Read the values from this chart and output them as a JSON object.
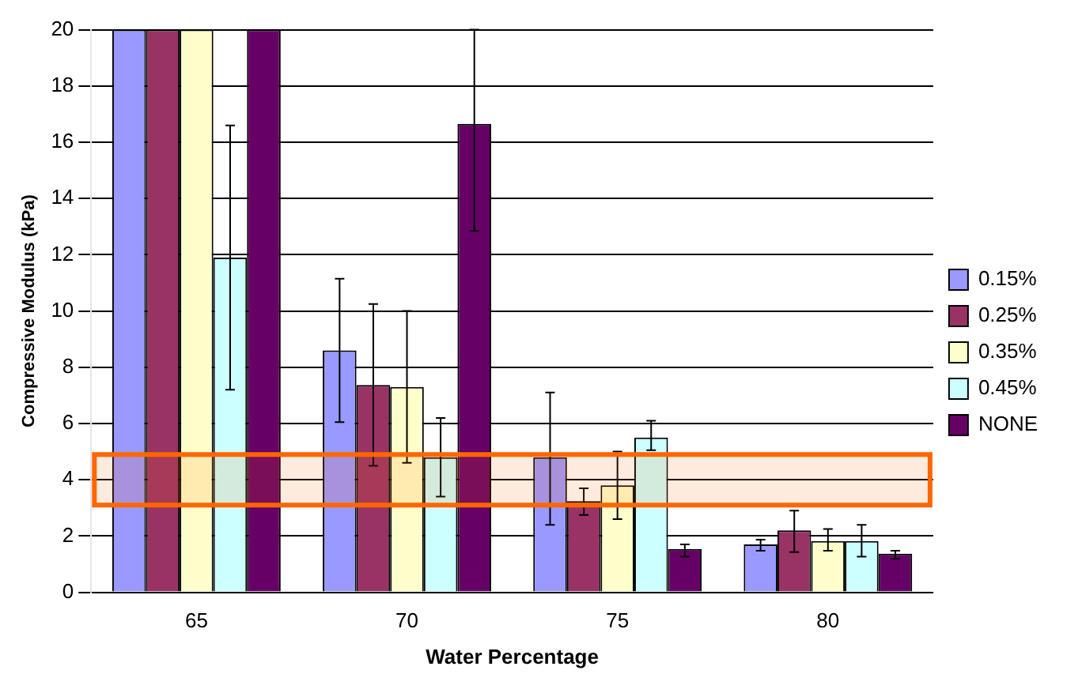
{
  "chart_data": {
    "type": "bar",
    "xlabel": "Water Percentage",
    "ylabel": "Compressive Modulus (kPa)",
    "categories": [
      "65",
      "70",
      "75",
      "80"
    ],
    "series": [
      {
        "name": "0.15%",
        "color": "#9999ff",
        "values": [
          20,
          8.6,
          4.8,
          1.7
        ],
        "errors": [
          null,
          [
            6.05,
            11.15
          ],
          [
            2.4,
            7.1
          ],
          [
            1.48,
            1.87
          ]
        ]
      },
      {
        "name": "0.25%",
        "color": "#993366",
        "values": [
          20,
          7.37,
          3.24,
          2.2
        ],
        "errors": [
          null,
          [
            4.5,
            10.25
          ],
          [
            2.75,
            3.7
          ],
          [
            1.43,
            2.9
          ]
        ]
      },
      {
        "name": "0.35%",
        "color": "#ffffcc",
        "values": [
          20,
          7.3,
          3.8,
          1.82
        ],
        "errors": [
          null,
          [
            4.6,
            10
          ],
          [
            2.6,
            5
          ],
          [
            1.48,
            2.25
          ]
        ]
      },
      {
        "name": "0.45%",
        "color": "#ccffff",
        "values": [
          11.9,
          4.8,
          5.5,
          1.82
        ],
        "errors": [
          [
            7.2,
            16.6
          ],
          [
            3.4,
            6.2
          ],
          [
            5.05,
            6.1
          ],
          [
            1.27,
            2.4
          ]
        ]
      },
      {
        "name": "NONE",
        "color": "#660066",
        "values": [
          20,
          16.65,
          1.54,
          1.37
        ],
        "errors": [
          null,
          [
            12.85,
            20
          ],
          [
            1.27,
            1.7
          ],
          [
            1.2,
            1.48
          ]
        ]
      }
    ],
    "ylim": [
      0,
      20
    ],
    "yticks": [
      0,
      2,
      4,
      6,
      8,
      10,
      12,
      14,
      16,
      18,
      20
    ],
    "grid": "y",
    "legend": "right",
    "bands": [
      {
        "axis": "y",
        "from": 3.1,
        "to": 4.9,
        "color": "#ff6600"
      }
    ]
  }
}
